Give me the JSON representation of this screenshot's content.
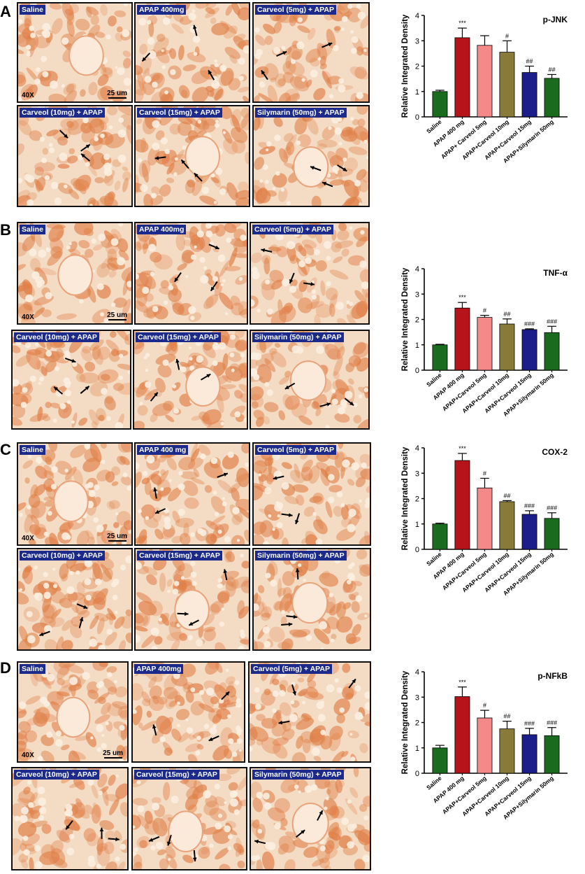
{
  "panels": [
    {
      "letter": "A",
      "tiles": [
        {
          "label": "Saline",
          "mag": "40X",
          "scale": "25 um"
        },
        {
          "label": "APAP 400mg"
        },
        {
          "label": "Carveol (5mg) + APAP"
        },
        {
          "label": "Carveol (10mg) + APAP"
        },
        {
          "label": "Carveol (15mg) + APAP"
        },
        {
          "label": "Silymarin (50mg) + APAP"
        }
      ]
    },
    {
      "letter": "B",
      "tiles": [
        {
          "label": "Saline",
          "mag": "40X",
          "scale": "25 um"
        },
        {
          "label": "APAP 400mg"
        },
        {
          "label": "Carveol (5mg) + APAP"
        },
        {
          "label": "Carveol (10mg) + APAP"
        },
        {
          "label": "Carveol (15mg) + APAP"
        },
        {
          "label": "Silymarin (50mg) + APAP"
        }
      ]
    },
    {
      "letter": "C",
      "tiles": [
        {
          "label": "Saline",
          "mag": "40X",
          "scale": "25 um"
        },
        {
          "label": "APAP 400 mg"
        },
        {
          "label": "Carveol (5mg) + APAP"
        },
        {
          "label": "Carveol (10mg) + APAP"
        },
        {
          "label": "Carveol (15mg) + APAP"
        },
        {
          "label": "Silymarin (50mg) + APAP"
        }
      ]
    },
    {
      "letter": "D",
      "tiles": [
        {
          "label": "Saline",
          "mag": "40X",
          "scale": "25 um"
        },
        {
          "label": "APAP 400mg"
        },
        {
          "label": "Carveol (5mg) + APAP"
        },
        {
          "label": "Carveol (10mg) + APAP"
        },
        {
          "label": "Carveol (15mg) + APAP"
        },
        {
          "label": "Silymarin (50mg) + APAP"
        }
      ]
    }
  ],
  "colors": {
    "tissue_bg": "#f4dcc4",
    "stain": "#e08048",
    "label_bg": "#1c2a8c",
    "bars": [
      "#1a6b1e",
      "#b5141a",
      "#f5898a",
      "#8a7a3a",
      "#1a1d8a",
      "#1a6b1e"
    ]
  },
  "chart_data": [
    {
      "type": "bar",
      "title": "p-JNK",
      "ylabel": "Relative Integrated Density",
      "ylim": [
        0,
        4
      ],
      "yticks": [
        "0",
        "1",
        "2",
        "3",
        "4"
      ],
      "categories": [
        "Saline",
        "APAP 400 mg",
        "APAP+ Carveol 5mg",
        "APAP+Carveol 10mg",
        "APAP+Carveol 15mg",
        "APAP+Silymarin 50mg"
      ],
      "values": [
        1.0,
        3.12,
        2.82,
        2.55,
        1.75,
        1.52
      ],
      "errors": [
        0.05,
        0.38,
        0.38,
        0.45,
        0.25,
        0.15
      ],
      "annotations": [
        "",
        "***",
        "",
        "#",
        "##",
        "##"
      ]
    },
    {
      "type": "bar",
      "title": "TNF-α",
      "ylabel": "Relative Integrated Density",
      "ylim": [
        0,
        4
      ],
      "yticks": [
        "0",
        "1",
        "2",
        "3",
        "4"
      ],
      "categories": [
        "Saline",
        "APAP 400 mg",
        "APAP+Carveol 5mg",
        "APAP+Carveol 10mg",
        "APAP+Carveol 15mg",
        "APAP+Silymarin 50mg"
      ],
      "values": [
        1.0,
        2.45,
        2.08,
        1.82,
        1.6,
        1.48
      ],
      "errors": [
        0.02,
        0.22,
        0.08,
        0.2,
        0.03,
        0.25
      ],
      "annotations": [
        "",
        "***",
        "#",
        "##",
        "###",
        "###"
      ]
    },
    {
      "type": "bar",
      "title": "COX-2",
      "ylabel": "Relative Integrated Density",
      "ylim": [
        0,
        4
      ],
      "yticks": [
        "0",
        "1",
        "2",
        "3",
        "4"
      ],
      "categories": [
        "Saline",
        "APAP 400 mg",
        "APAP+Carveol 5mg",
        "APAP+Carveol 10mg",
        "APAP+Carveol 15mg",
        "APAP+Silymarin 50mg"
      ],
      "values": [
        1.0,
        3.5,
        2.42,
        1.88,
        1.38,
        1.22
      ],
      "errors": [
        0.03,
        0.28,
        0.38,
        0.04,
        0.14,
        0.22
      ],
      "annotations": [
        "",
        "***",
        "#",
        "##",
        "###",
        "###"
      ]
    },
    {
      "type": "bar",
      "title": "p-NFkB",
      "ylabel": "Relative Integrated Density",
      "ylim": [
        0,
        4
      ],
      "yticks": [
        "0",
        "1",
        "2",
        "3",
        "4"
      ],
      "categories": [
        "Saline",
        "APAP 400 mg",
        "APAP+Carveol 5mg",
        "APAP+Carveol 10mg",
        "APAP+Carveol 15mg",
        "APAP+Silymarin 50mg"
      ],
      "values": [
        1.0,
        3.02,
        2.18,
        1.75,
        1.52,
        1.48
      ],
      "errors": [
        0.1,
        0.38,
        0.3,
        0.3,
        0.25,
        0.32
      ],
      "annotations": [
        "",
        "***",
        "#",
        "##",
        "###",
        "###"
      ]
    }
  ]
}
